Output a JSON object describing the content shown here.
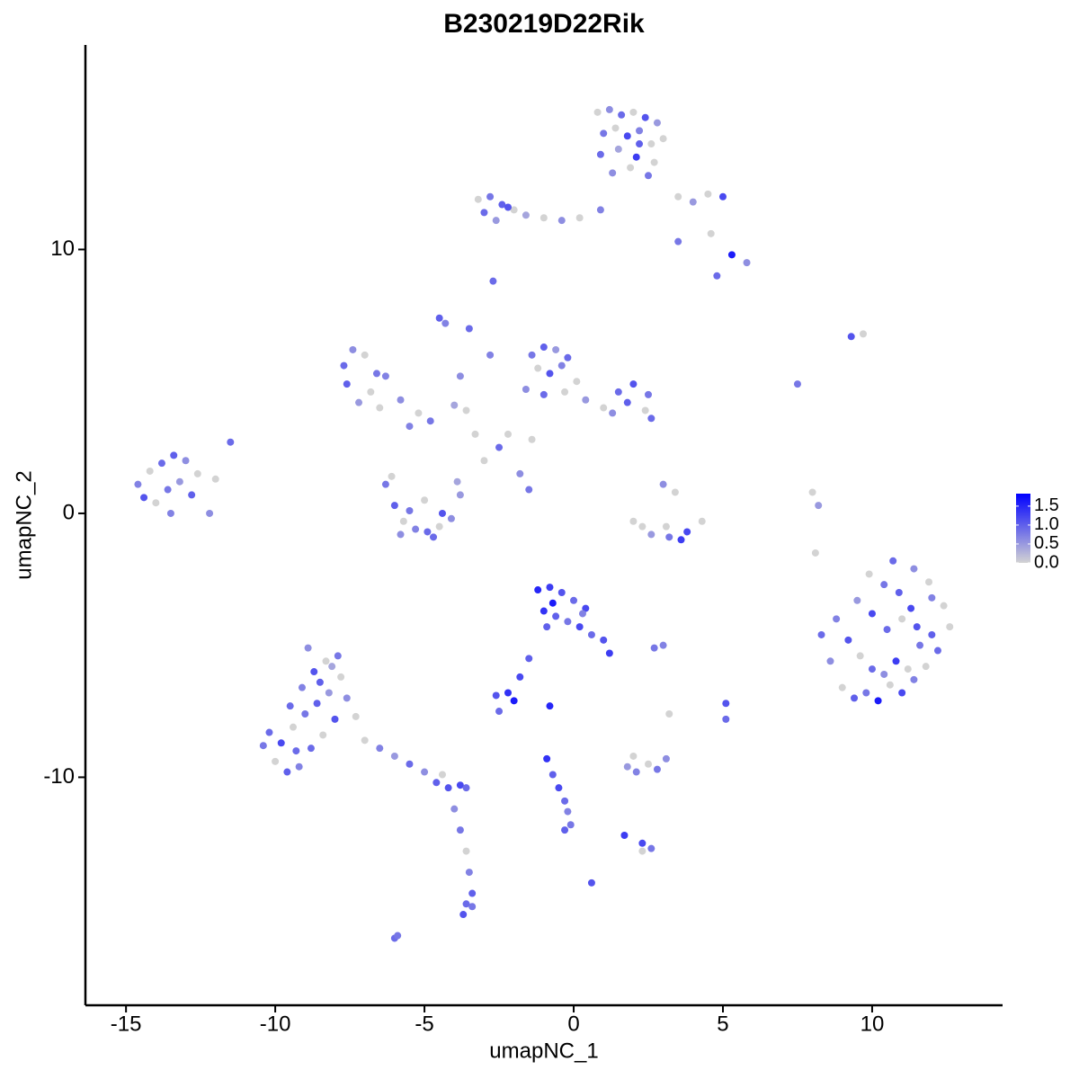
{
  "chart_data": {
    "type": "scatter",
    "title": "B230219D22Rik",
    "xlabel": "umapNC_1",
    "ylabel": "umapNC_2",
    "xlim": [
      -16.36,
      14.37
    ],
    "xticks": [
      -15,
      -10,
      -5,
      0,
      5,
      10
    ],
    "ylim": [
      -18.64,
      17.75
    ],
    "yticks": [
      -10,
      0,
      10
    ],
    "colorbar": {
      "lim": [
        0,
        1.83
      ],
      "ticks": [
        {
          "value": 0,
          "label": "0.0"
        },
        0.5,
        {
          "value": 1,
          "label": "1.0"
        },
        1.5
      ],
      "low": "#d3d3d3",
      "high": "#0000ff"
    },
    "x": [
      0.8,
      1.2,
      1.6,
      2.0,
      2.4,
      2.8,
      3.0,
      1.0,
      1.4,
      1.8,
      2.2,
      2.6,
      0.9,
      1.5,
      2.1,
      2.7,
      1.3,
      1.9,
      2.5,
      2.2,
      -3.2,
      -2.8,
      -2.4,
      -2.0,
      -3.0,
      -2.6,
      -2.2,
      -1.6,
      -1.0,
      -0.4,
      0.2,
      0.9,
      3.5,
      4.0,
      4.5,
      5.0,
      4.6,
      5.3,
      5.8,
      4.8,
      -2.7,
      -4.5,
      -4.3,
      9.3,
      9.7,
      7.5,
      8.0,
      8.2,
      8.1,
      3.5,
      -14.6,
      -14.2,
      -13.8,
      -13.4,
      -13.0,
      -12.6,
      -14.4,
      -14.0,
      -13.6,
      -13.2,
      -12.8,
      -12.2,
      -11.5,
      -12.0,
      -13.5,
      -7.7,
      -7.4,
      -7.0,
      -6.6,
      -7.6,
      -6.8,
      -6.3,
      -7.2,
      -6.5,
      -5.8,
      -5.2,
      -4.8,
      -4.0,
      -3.6,
      -5.5,
      -1.4,
      -1.0,
      -0.6,
      -0.2,
      -1.2,
      -0.8,
      -0.4,
      0.1,
      -1.6,
      -1.0,
      -0.3,
      0.4,
      1.0,
      1.5,
      2.0,
      2.5,
      1.3,
      1.8,
      2.4,
      2.6,
      -2.5,
      -2.2,
      -3.0,
      -1.8,
      -1.5,
      -3.3,
      -2.8,
      -1.4,
      -3.8,
      -3.5,
      -6.3,
      -6.0,
      -5.7,
      -5.3,
      -4.9,
      -4.5,
      -4.1,
      -3.8,
      -6.1,
      -5.5,
      -5.0,
      -4.4,
      -3.9,
      -5.8,
      -4.7,
      2.0,
      2.6,
      3.2,
      3.8,
      4.3,
      3.0,
      3.4,
      3.6,
      3.1,
      2.3,
      8.3,
      8.6,
      9.0,
      9.4,
      9.8,
      10.2,
      10.6,
      11.0,
      11.4,
      11.8,
      12.2,
      12.6,
      8.8,
      9.2,
      9.6,
      10.0,
      10.4,
      10.8,
      11.2,
      11.6,
      12.0,
      12.4,
      9.5,
      10.0,
      10.5,
      11.0,
      11.5,
      12.0,
      9.9,
      10.4,
      10.9,
      11.4,
      11.9,
      10.7,
      11.3,
      -1.2,
      -0.8,
      -0.4,
      0.0,
      0.4,
      -1.0,
      -0.6,
      -0.2,
      0.2,
      0.6,
      1.0,
      1.2,
      -0.7,
      0.3,
      -0.9,
      -1.5,
      -1.8,
      -2.2,
      -2.6,
      -2.0,
      -2.5,
      -0.8,
      2.7,
      3.0,
      5.1,
      5.1,
      3.2,
      1.8,
      2.1,
      2.5,
      2.8,
      3.1,
      2.0,
      2.3,
      2.6,
      -0.9,
      -0.7,
      -0.5,
      -0.3,
      -0.2,
      -0.1,
      -0.3,
      0.6,
      1.7,
      2.3,
      -6.0,
      -5.9,
      -10.4,
      -10.0,
      -9.6,
      -9.2,
      -8.8,
      -8.4,
      -8.0,
      -7.6,
      -7.3,
      -10.2,
      -9.8,
      -9.4,
      -9.0,
      -8.6,
      -8.2,
      -7.8,
      -9.5,
      -9.1,
      -8.7,
      -8.3,
      -7.9,
      -8.9,
      -8.5,
      -8.1,
      -9.3,
      -7.0,
      -6.5,
      -6.0,
      -5.5,
      -5.0,
      -4.6,
      -4.2,
      -3.8,
      -3.6,
      -4.0,
      -3.8,
      -3.6,
      -3.5,
      -3.4,
      -3.6,
      -3.7,
      -3.4,
      -4.4
    ],
    "y": [
      15.2,
      15.3,
      15.1,
      15.2,
      15.0,
      14.8,
      14.2,
      14.4,
      14.6,
      14.3,
      14.5,
      14.0,
      13.6,
      13.8,
      13.5,
      13.3,
      12.9,
      13.1,
      12.8,
      14.0,
      11.9,
      12.0,
      11.7,
      11.5,
      11.4,
      11.1,
      11.6,
      11.3,
      11.2,
      11.1,
      11.2,
      11.5,
      12.0,
      11.8,
      12.1,
      12.0,
      10.6,
      9.8,
      9.5,
      9.0,
      8.8,
      7.4,
      7.2,
      6.7,
      6.8,
      4.9,
      0.8,
      0.3,
      -1.5,
      10.3,
      1.1,
      1.6,
      1.9,
      2.2,
      2.0,
      1.5,
      0.6,
      0.4,
      0.9,
      1.2,
      0.7,
      0.0,
      2.7,
      1.3,
      0.0,
      5.6,
      6.2,
      6.0,
      5.3,
      4.9,
      4.6,
      5.2,
      4.2,
      4.0,
      4.3,
      3.8,
      3.5,
      4.1,
      3.9,
      3.3,
      6.0,
      6.3,
      6.2,
      5.9,
      5.5,
      5.3,
      5.6,
      5.0,
      4.7,
      4.5,
      4.6,
      4.3,
      4.0,
      4.6,
      4.9,
      4.5,
      3.8,
      4.2,
      3.9,
      3.6,
      2.5,
      3.0,
      2.0,
      1.5,
      0.9,
      3.0,
      6.0,
      2.8,
      5.2,
      7.0,
      1.1,
      0.3,
      -0.3,
      -0.6,
      -0.7,
      -0.5,
      -0.2,
      0.7,
      1.4,
      0.1,
      0.5,
      0.0,
      1.2,
      -0.8,
      -0.9,
      -0.3,
      -0.8,
      -0.9,
      -0.7,
      -0.3,
      1.1,
      0.8,
      -1.0,
      -0.5,
      -0.5,
      -4.6,
      -5.6,
      -6.6,
      -7.0,
      -6.8,
      -7.1,
      -6.5,
      -6.8,
      -6.3,
      -5.8,
      -5.2,
      -4.3,
      -4.0,
      -4.8,
      -5.4,
      -5.9,
      -6.1,
      -5.6,
      -5.9,
      -5.0,
      -4.6,
      -3.5,
      -3.3,
      -3.8,
      -4.4,
      -4.0,
      -4.3,
      -3.2,
      -2.3,
      -2.7,
      -3.0,
      -2.1,
      -2.6,
      -1.8,
      -3.6,
      -2.9,
      -2.8,
      -3.0,
      -3.3,
      -3.6,
      -3.7,
      -3.9,
      -4.1,
      -4.3,
      -4.6,
      -4.8,
      -5.3,
      -3.4,
      -3.8,
      -4.3,
      -5.5,
      -6.2,
      -6.8,
      -6.9,
      -7.1,
      -7.5,
      -7.3,
      -5.1,
      -5.0,
      -7.2,
      -7.8,
      -7.6,
      -9.6,
      -9.8,
      -9.5,
      -9.7,
      -9.3,
      -9.2,
      -12.5,
      -12.7,
      -9.3,
      -9.9,
      -10.4,
      -10.9,
      -11.3,
      -11.8,
      -12.0,
      -14.0,
      -12.2,
      -12.8,
      -16.1,
      -16.0,
      -8.8,
      -9.4,
      -9.8,
      -9.6,
      -8.9,
      -8.4,
      -7.8,
      -7.0,
      -7.7,
      -8.3,
      -8.7,
      -8.1,
      -7.6,
      -7.2,
      -6.8,
      -6.2,
      -7.3,
      -6.6,
      -6.0,
      -5.6,
      -5.4,
      -5.1,
      -6.4,
      -5.8,
      -9.0,
      -8.6,
      -8.9,
      -9.2,
      -9.5,
      -9.8,
      -10.2,
      -10.4,
      -10.3,
      -10.4,
      -11.2,
      -12.0,
      -12.8,
      -13.6,
      -14.4,
      -14.8,
      -15.2,
      -14.9,
      -9.9
    ],
    "values": [
      0,
      0.6,
      0.9,
      0,
      1.1,
      0.5,
      0,
      0.8,
      0,
      1.2,
      0.7,
      0,
      0.9,
      0.4,
      1.3,
      0,
      0.6,
      0,
      0.8,
      1.0,
      0,
      0.8,
      1.0,
      0,
      0.9,
      0.5,
      1.1,
      0.4,
      0,
      0.6,
      0,
      0.7,
      0,
      0.5,
      0,
      1.2,
      0,
      1.6,
      0.6,
      0.9,
      0.9,
      1.0,
      0.7,
      1.1,
      0,
      0.8,
      0,
      0.5,
      0,
      0.8,
      0.7,
      0,
      0.9,
      1.0,
      0.6,
      0,
      1.1,
      0,
      0.8,
      0.5,
      1.0,
      0.6,
      0.9,
      0,
      0.7,
      0.9,
      0.6,
      0,
      0.8,
      1.0,
      0,
      0.7,
      0.5,
      0,
      0.6,
      0,
      0.8,
      0.4,
      0,
      0.7,
      0.8,
      1.0,
      0.5,
      0.9,
      0,
      1.1,
      0.7,
      0,
      0.6,
      0.9,
      0,
      0.5,
      0,
      0.9,
      1.1,
      0.8,
      0.6,
      1.0,
      0,
      0.9,
      0.9,
      0,
      0,
      0.6,
      0.8,
      0,
      0.7,
      0,
      0.6,
      0.9,
      0.8,
      1.0,
      0,
      0.7,
      0.9,
      0,
      0.6,
      0.5,
      0,
      0.8,
      0,
      1.1,
      0.4,
      0.6,
      0.9,
      0,
      0.5,
      0.8,
      1.2,
      0,
      0.6,
      0,
      1.3,
      0,
      0,
      0.9,
      0.6,
      0,
      1.0,
      0.8,
      1.6,
      0,
      1.2,
      0.7,
      0,
      0.9,
      0,
      0.7,
      1.1,
      0,
      0.9,
      0.6,
      1.3,
      0,
      0.8,
      1.0,
      0,
      0.5,
      1.2,
      0.9,
      0,
      1.1,
      0.7,
      0,
      0.8,
      1.0,
      0.6,
      0,
      0.9,
      1.2,
      1.5,
      1.3,
      1.1,
      0.9,
      1.2,
      1.4,
      1.0,
      0.8,
      1.2,
      0.9,
      1.1,
      1.3,
      1.6,
      0.7,
      1.0,
      1.0,
      1.2,
      1.4,
      1.1,
      1.6,
      0.9,
      1.5,
      0.8,
      0.7,
      1.1,
      0.9,
      0,
      0.5,
      0.7,
      0,
      0.8,
      0.6,
      0,
      1.2,
      0.8,
      1.4,
      1.0,
      1.2,
      0.9,
      0.7,
      0.8,
      1.0,
      1.1,
      1.3,
      0,
      0.9,
      0.8,
      0.8,
      0,
      1.0,
      0.7,
      0.9,
      0,
      1.1,
      0.6,
      0,
      0.9,
      1.2,
      0,
      0.8,
      1.0,
      0.5,
      0,
      0.9,
      0.7,
      1.1,
      0,
      0.8,
      0.6,
      1.0,
      0.4,
      0.9,
      0,
      0.7,
      0.5,
      0.9,
      0.6,
      1.0,
      1.1,
      1.2,
      0.9,
      0.6,
      0.8,
      0,
      0.7,
      1.0,
      0.9,
      1.1,
      0.8,
      0
    ]
  }
}
